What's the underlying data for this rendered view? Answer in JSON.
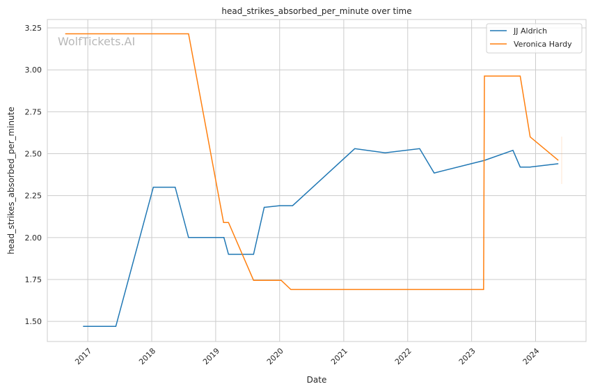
{
  "chart_data": {
    "type": "line",
    "title": "head_strikes_absorbed_per_minute over time",
    "xlabel": "Date",
    "ylabel": "head_strikes_absorbed_per_minute",
    "watermark": "WolfTickets.AI",
    "xlim": [
      "2016-05-15",
      "2024-10-15"
    ],
    "ylim": [
      1.38,
      3.3
    ],
    "x_ticks": [
      "2017",
      "2018",
      "2019",
      "2020",
      "2021",
      "2022",
      "2023",
      "2024"
    ],
    "y_ticks": [
      "1.50",
      "1.75",
      "2.00",
      "2.25",
      "2.50",
      "2.75",
      "3.00",
      "3.25"
    ],
    "grid": true,
    "legend_position": "top-right",
    "series": [
      {
        "name": "JJ Aldrich",
        "color": "#1f77b4",
        "points": [
          [
            "2016-12-05",
            1.47
          ],
          [
            "2017-06-10",
            1.47
          ],
          [
            "2018-01-10",
            2.3
          ],
          [
            "2018-05-15",
            2.3
          ],
          [
            "2018-07-30",
            2.0
          ],
          [
            "2019-02-17",
            2.0
          ],
          [
            "2019-03-15",
            1.9
          ],
          [
            "2019-08-05",
            1.9
          ],
          [
            "2019-10-05",
            2.18
          ],
          [
            "2020-01-01",
            2.19
          ],
          [
            "2020-03-15",
            2.19
          ],
          [
            "2021-03-05",
            2.53
          ],
          [
            "2021-08-25",
            2.505
          ],
          [
            "2022-03-10",
            2.53
          ],
          [
            "2022-06-01",
            2.385
          ],
          [
            "2023-03-15",
            2.46
          ],
          [
            "2023-08-25",
            2.52
          ],
          [
            "2023-10-05",
            2.42
          ],
          [
            "2023-12-01",
            2.42
          ],
          [
            "2024-05-10",
            2.44
          ]
        ]
      },
      {
        "name": "Veronica Hardy",
        "color": "#ff7f0e",
        "points": [
          [
            "2016-08-25",
            3.215
          ],
          [
            "2018-07-30",
            3.215
          ],
          [
            "2019-02-15",
            2.09
          ],
          [
            "2019-03-15",
            2.09
          ],
          [
            "2019-08-05",
            1.745
          ],
          [
            "2020-01-10",
            1.745
          ],
          [
            "2020-03-05",
            1.69
          ],
          [
            "2023-03-10",
            1.69
          ],
          [
            "2023-03-15",
            2.963
          ],
          [
            "2023-10-05",
            2.963
          ],
          [
            "2023-12-01",
            2.6
          ],
          [
            "2024-05-10",
            2.46
          ]
        ]
      }
    ]
  }
}
